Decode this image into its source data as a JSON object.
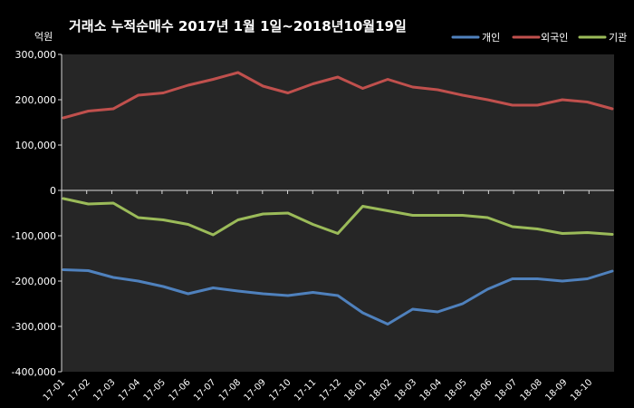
{
  "chart_data": {
    "type": "line",
    "title": "거래소  누적순매수 2017년 1월 1일~2018년10월19일",
    "unit_label": "억원",
    "ylim": [
      -400000,
      300000
    ],
    "yticks": [
      300000,
      200000,
      100000,
      0,
      -100000,
      -200000,
      -300000,
      -400000
    ],
    "ytick_labels": [
      "300,000",
      "200,000",
      "100,000",
      "0",
      "-100,000",
      "-200,000",
      "-300,000",
      "-400,000"
    ],
    "x_tick_labels": [
      "17-01",
      "17-02",
      "17-03",
      "17-04",
      "17-05",
      "17-06",
      "17-07",
      "17-08",
      "17-09",
      "17-10",
      "17-11",
      "17-12",
      "18-01",
      "18-02",
      "18-03",
      "18-04",
      "18-05",
      "18-06",
      "18-07",
      "18-08",
      "18-09",
      "18-10"
    ],
    "grid": false,
    "legend_position": "top-right",
    "series": [
      {
        "name": "개인",
        "color": "#4f81bd",
        "values": [
          -175000,
          -177000,
          -192000,
          -200000,
          -212000,
          -228000,
          -215000,
          -222000,
          -228000,
          -232000,
          -225000,
          -232000,
          -270000,
          -295000,
          -262000,
          -268000,
          -250000,
          -218000,
          -195000,
          -195000,
          -200000,
          -195000,
          -178000
        ]
      },
      {
        "name": "외국인",
        "color": "#c0504d",
        "values": [
          160000,
          175000,
          180000,
          210000,
          215000,
          232000,
          245000,
          260000,
          230000,
          215000,
          235000,
          250000,
          225000,
          245000,
          228000,
          222000,
          210000,
          200000,
          188000,
          188000,
          200000,
          195000,
          180000
        ]
      },
      {
        "name": "기관",
        "color": "#9bbb59",
        "values": [
          -18000,
          -30000,
          -28000,
          -60000,
          -65000,
          -75000,
          -98000,
          -65000,
          -52000,
          -50000,
          -75000,
          -95000,
          -35000,
          -45000,
          -55000,
          -55000,
          -55000,
          -60000,
          -80000,
          -85000,
          -95000,
          -93000,
          -97000
        ]
      }
    ]
  }
}
